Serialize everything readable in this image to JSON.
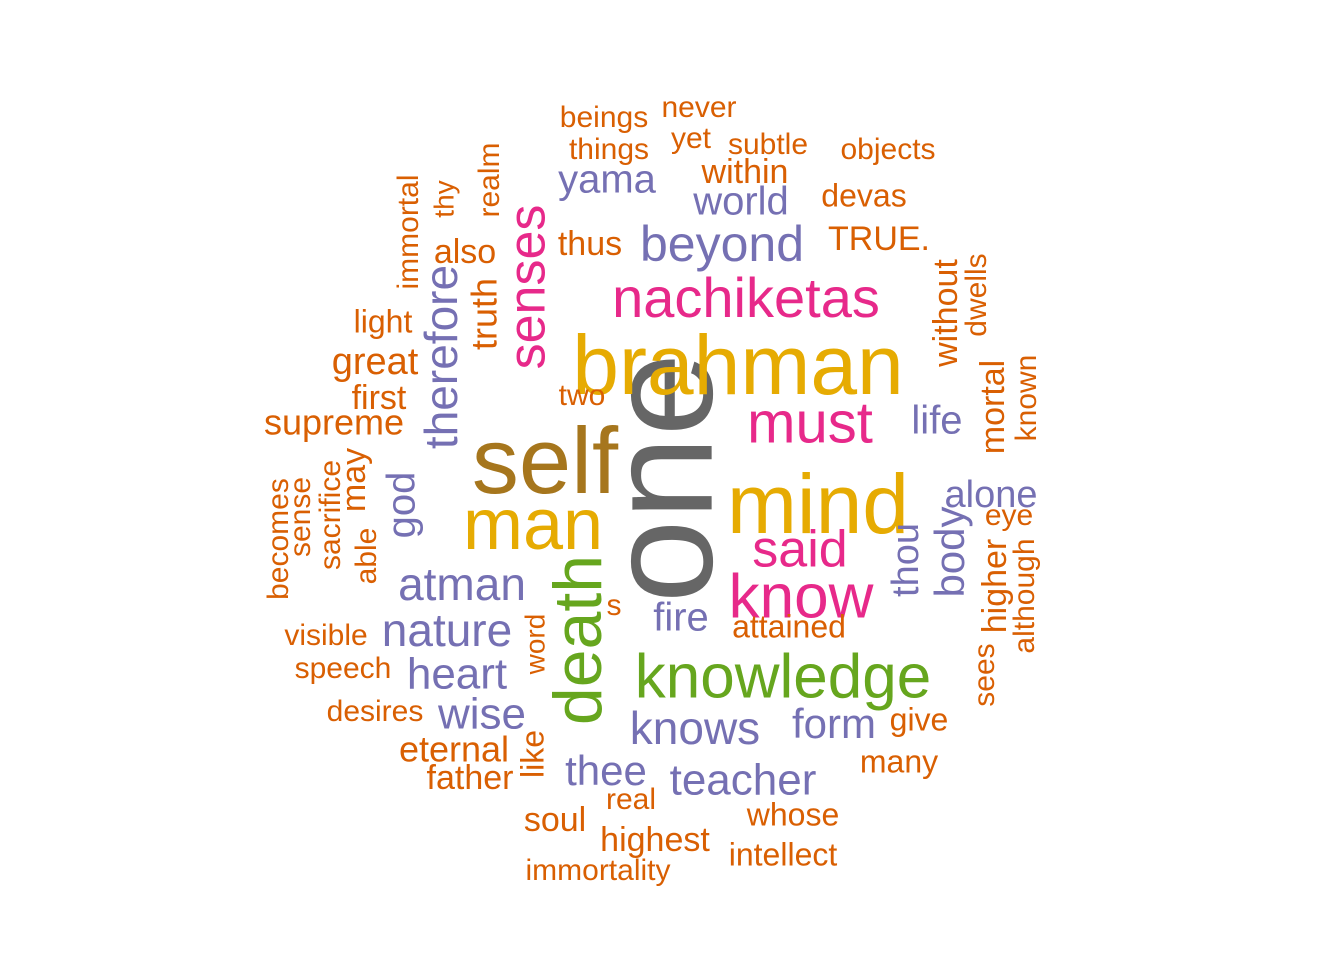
{
  "palette": {
    "c1": "#D95F02",
    "c2": "#7570B3",
    "c3": "#E7298A",
    "c4": "#E6AB02",
    "c5": "#66A61E",
    "c6": "#A6761D",
    "c7": "#666666"
  },
  "words": [
    {
      "text": "one",
      "color": "c7"
    },
    {
      "text": "brahman",
      "color": "c4"
    },
    {
      "text": "self",
      "color": "c6"
    },
    {
      "text": "mind",
      "color": "c4"
    },
    {
      "text": "man",
      "color": "c4"
    },
    {
      "text": "knowledge",
      "color": "c5"
    },
    {
      "text": "death",
      "color": "c5"
    },
    {
      "text": "know",
      "color": "c3"
    },
    {
      "text": "nachiketas",
      "color": "c3"
    },
    {
      "text": "must",
      "color": "c3"
    },
    {
      "text": "said",
      "color": "c3"
    },
    {
      "text": "senses",
      "color": "c3"
    },
    {
      "text": "beyond",
      "color": "c2"
    },
    {
      "text": "atman",
      "color": "c2"
    },
    {
      "text": "nature",
      "color": "c2"
    },
    {
      "text": "knows",
      "color": "c2"
    },
    {
      "text": "teacher",
      "color": "c2"
    },
    {
      "text": "therefore",
      "color": "c2"
    },
    {
      "text": "heart",
      "color": "c2"
    },
    {
      "text": "wise",
      "color": "c2"
    },
    {
      "text": "thee",
      "color": "c2"
    },
    {
      "text": "form",
      "color": "c2"
    },
    {
      "text": "yama",
      "color": "c2"
    },
    {
      "text": "world",
      "color": "c2"
    },
    {
      "text": "alone",
      "color": "c2"
    },
    {
      "text": "body",
      "color": "c2"
    },
    {
      "text": "god",
      "color": "c2"
    },
    {
      "text": "thou",
      "color": "c2"
    },
    {
      "text": "life",
      "color": "c2"
    },
    {
      "text": "fire",
      "color": "c2"
    },
    {
      "text": "supreme",
      "color": "c1"
    },
    {
      "text": "eternal",
      "color": "c1"
    },
    {
      "text": "great",
      "color": "c1"
    },
    {
      "text": "truth",
      "color": "c1"
    },
    {
      "text": "thus",
      "color": "c1"
    },
    {
      "text": "also",
      "color": "c1"
    },
    {
      "text": "within",
      "color": "c1"
    },
    {
      "text": "TRUE.",
      "color": "c1"
    },
    {
      "text": "devas",
      "color": "c1"
    },
    {
      "text": "beings",
      "color": "c1"
    },
    {
      "text": "things",
      "color": "c1"
    },
    {
      "text": "subtle",
      "color": "c1"
    },
    {
      "text": "yet",
      "color": "c1"
    },
    {
      "text": "never",
      "color": "c1"
    },
    {
      "text": "objects",
      "color": "c1"
    },
    {
      "text": "immortal",
      "color": "c1"
    },
    {
      "text": "thy",
      "color": "c1"
    },
    {
      "text": "realm",
      "color": "c1"
    },
    {
      "text": "light",
      "color": "c1"
    },
    {
      "text": "first",
      "color": "c1"
    },
    {
      "text": "two",
      "color": "c1"
    },
    {
      "text": "without",
      "color": "c1"
    },
    {
      "text": "dwells",
      "color": "c1"
    },
    {
      "text": "mortal",
      "color": "c1"
    },
    {
      "text": "known",
      "color": "c1"
    },
    {
      "text": "eye",
      "color": "c1"
    },
    {
      "text": "higher",
      "color": "c1"
    },
    {
      "text": "although",
      "color": "c1"
    },
    {
      "text": "sees",
      "color": "c1"
    },
    {
      "text": "may",
      "color": "c1"
    },
    {
      "text": "sacrifice",
      "color": "c1"
    },
    {
      "text": "sense",
      "color": "c1"
    },
    {
      "text": "becomes",
      "color": "c1"
    },
    {
      "text": "able",
      "color": "c1"
    },
    {
      "text": "visible",
      "color": "c1"
    },
    {
      "text": "speech",
      "color": "c1"
    },
    {
      "text": "desires",
      "color": "c1"
    },
    {
      "text": "word",
      "color": "c1"
    },
    {
      "text": "s",
      "color": "c1"
    },
    {
      "text": "attained",
      "color": "c1"
    },
    {
      "text": "give",
      "color": "c1"
    },
    {
      "text": "many",
      "color": "c1"
    },
    {
      "text": "whose",
      "color": "c1"
    },
    {
      "text": "intellect",
      "color": "c1"
    },
    {
      "text": "like",
      "color": "c1"
    },
    {
      "text": "father",
      "color": "c1"
    },
    {
      "text": "soul",
      "color": "c1"
    },
    {
      "text": "real",
      "color": "c1"
    },
    {
      "text": "highest",
      "color": "c1"
    },
    {
      "text": "immortality",
      "color": "c1"
    }
  ]
}
